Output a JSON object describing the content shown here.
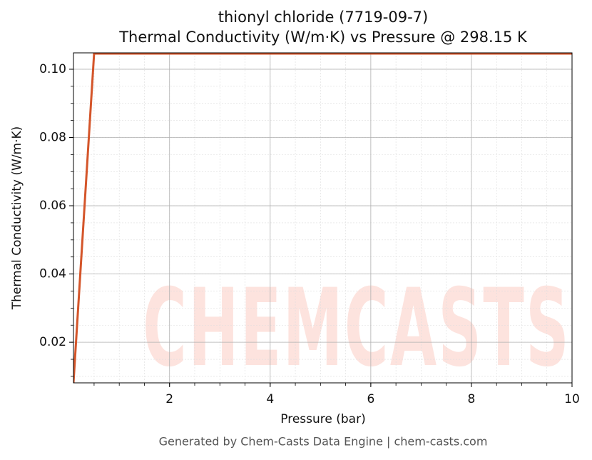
{
  "chart_data": {
    "type": "line",
    "title": "thionyl chloride (7719-09-7)",
    "subtitle": "Thermal Conductivity (W/m·K) vs Pressure @ 298.15 K",
    "x_label": "Pressure (bar)",
    "y_label": "Thermal Conductivity (W/m·K)",
    "footer": "Generated by Chem-Casts Data Engine | chem-casts.com",
    "watermark": "CHEMCASTS",
    "x": [
      0.09,
      0.5,
      10
    ],
    "series": [
      {
        "name": "Thermal Conductivity",
        "color": "#d4552a",
        "values": [
          0.0081,
          0.1046,
          0.1046
        ]
      }
    ],
    "xlim": [
      0.09,
      10
    ],
    "xticks": [
      2,
      4,
      6,
      8,
      10
    ],
    "ylim": [
      0.0081,
      0.1048
    ],
    "yticks": [
      0.02,
      0.04,
      0.06,
      0.08,
      {
        "value": 0.1,
        "label": "0.10"
      }
    ],
    "grid": true,
    "minor_divisions": 4
  }
}
